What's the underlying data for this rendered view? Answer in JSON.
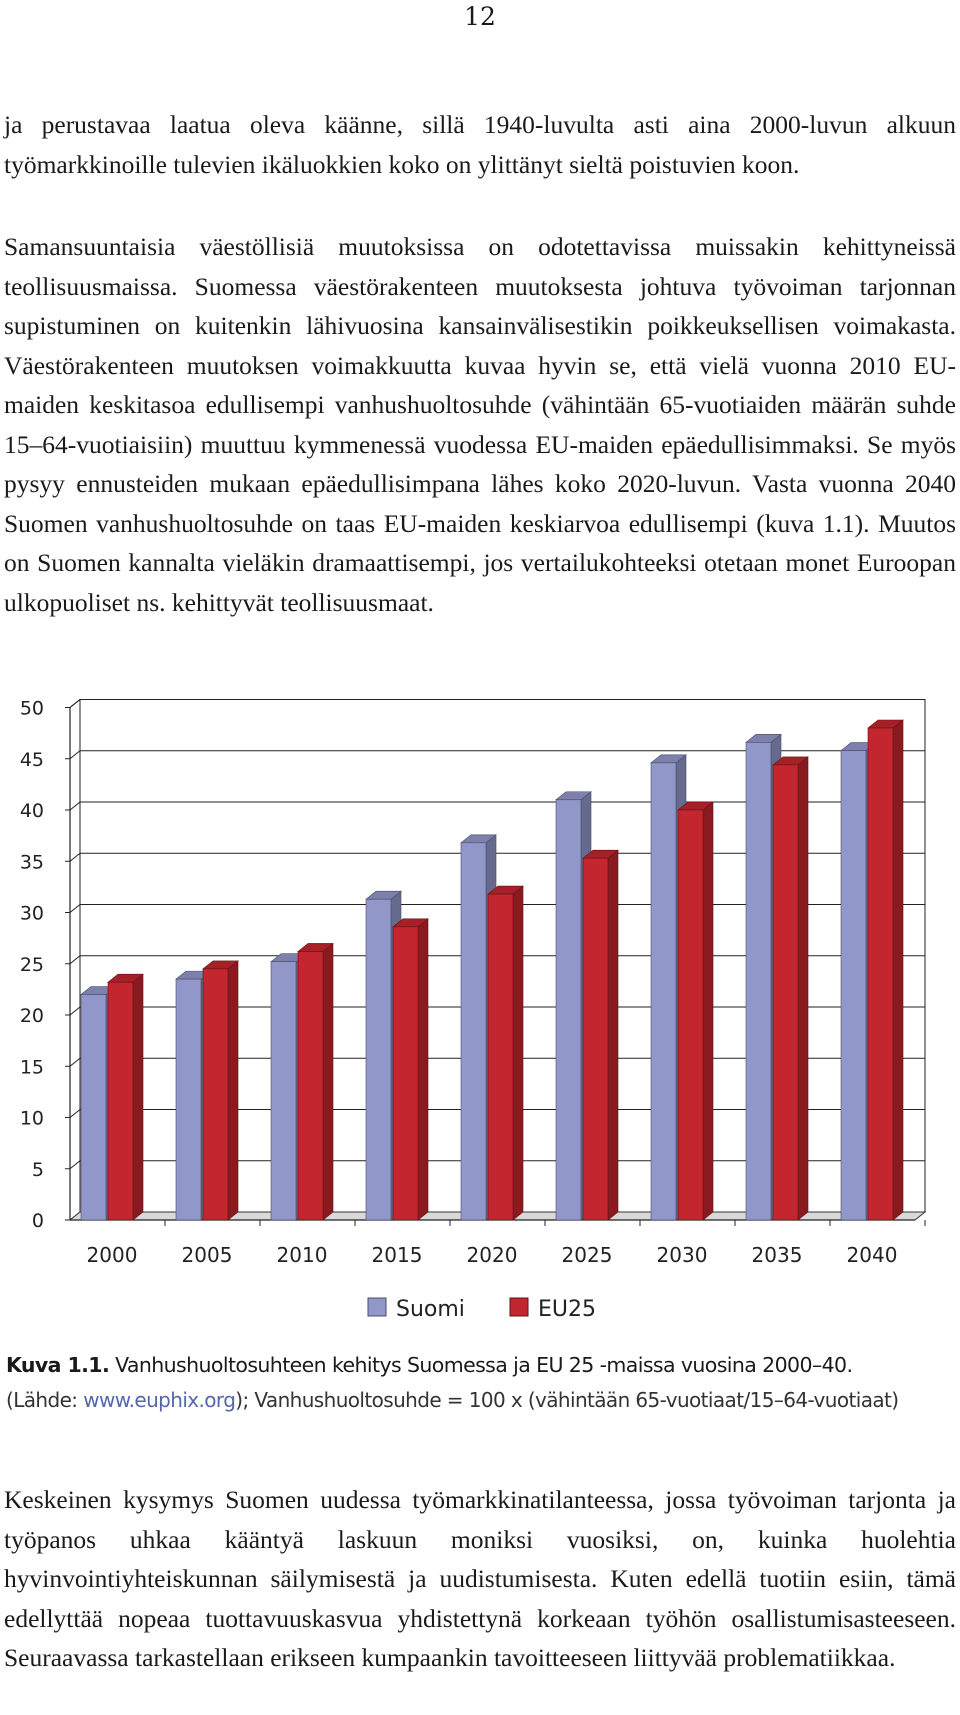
{
  "page_number": "12",
  "paragraphs": {
    "p1": "ja perustavaa laatua oleva käänne, sillä 1940-luvulta asti aina 2000-luvun alkuun työmarkkinoille tulevien ikäluokkien koko on ylittänyt sieltä poistuvien koon.",
    "p2": "Samansuuntaisia väestöllisiä muutoksissa on odotettavissa muissakin kehittyneissä teollisuusmaissa. Suomessa väestörakenteen muutoksesta johtuva työvoiman tarjonnan supistuminen on kuitenkin lähivuosina kansainvälisestikin poikkeuksellisen voimakasta. Väestörakenteen muutoksen voimakkuutta kuvaa hyvin se, että vielä vuonna 2010 EU-maiden keskitasoa edullisempi vanhushuoltosuhde (vähintään 65-vuotiaiden määrän suhde 15–64-vuotiaisiin) muuttuu kymmenessä vuodessa EU-maiden epäedullisimmaksi. Se myös pysyy ennusteiden mukaan epäedullisimpana lähes koko 2020-luvun. Vasta vuonna 2040 Suomen vanhushuoltosuhde on taas EU-maiden keskiarvoa edullisempi (kuva 1.1). Muutos on Suomen kannalta vieläkin dramaattisempi, jos vertailukohteeksi otetaan monet Euroopan ulkopuoliset ns. kehittyvät teollisuusmaat.",
    "p3": "Keskeinen kysymys Suomen uudessa työmarkkinatilanteessa, jossa työvoiman tarjonta ja työpanos uhkaa kääntyä laskuun moniksi vuosiksi, on, kuinka huolehtia hyvinvointiyhteiskunnan säilymisestä ja uudistumisesta. Kuten edellä tuotiin esiin, tämä edellyttää nopeaa tuottavuuskasvua yhdistettynä korkeaan työhön osallistumisasteeseen. Seuraavassa tarkastellaan erikseen kumpaankin tavoitteeseen liittyvää problematiikkaa."
  },
  "caption": {
    "label": "Kuva 1.1.",
    "text": " Vanhushuoltosuhteen kehitys Suomessa ja EU 25 -maissa vuosina 2000–40.",
    "source_prefix": "(Lähde: ",
    "source_link": "www.euphix.org",
    "source_suffix": "); Vanhushuoltosuhde = 100 x (vähintään 65-vuotiaat/15–64-vuotiaat)"
  },
  "chart_data": {
    "type": "bar",
    "style": "3d-clustered",
    "categories": [
      "2000",
      "2005",
      "2010",
      "2015",
      "2020",
      "2025",
      "2030",
      "2035",
      "2040"
    ],
    "series": [
      {
        "name": "Suomi",
        "color": "#9297c9",
        "values": [
          22,
          23.5,
          25.2,
          31.3,
          36.8,
          41,
          44.6,
          46.6,
          45.8
        ]
      },
      {
        "name": "EU25",
        "color": "#c3262e",
        "values": [
          23.2,
          24.5,
          26.2,
          28.6,
          31.8,
          35.3,
          40,
          44.4,
          48
        ]
      }
    ],
    "y_ticks": [
      "0",
      "5",
      "10",
      "15",
      "20",
      "25",
      "30",
      "35",
      "40",
      "45",
      "50"
    ],
    "ylim": [
      0,
      50
    ],
    "legend_position": "bottom",
    "grid": true
  }
}
